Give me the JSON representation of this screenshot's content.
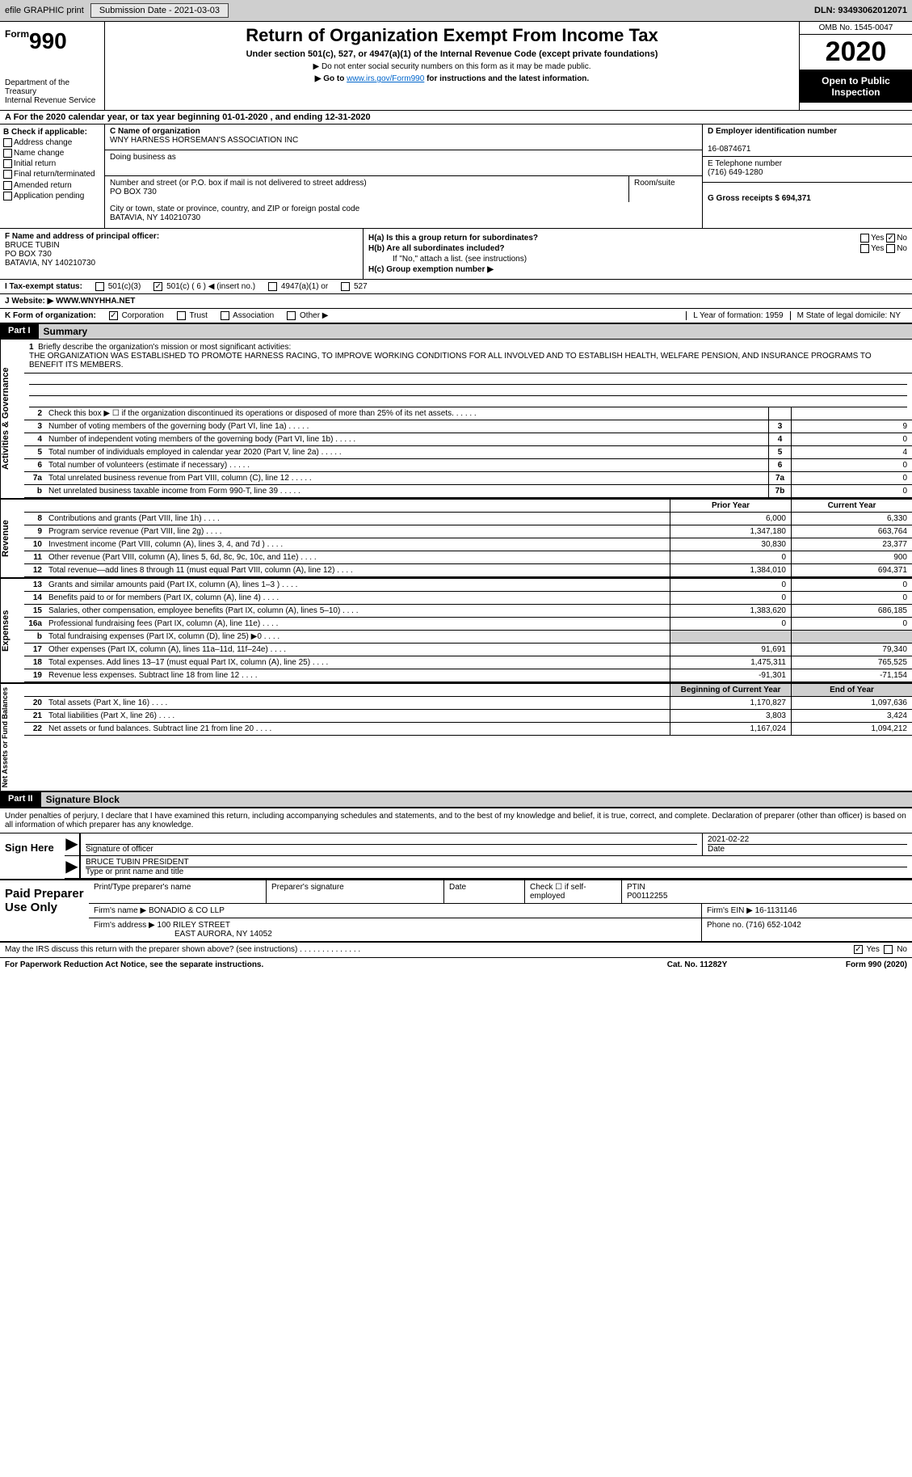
{
  "header_bar": {
    "efile": "efile GRAPHIC print",
    "submission_label": "Submission Date - 2021-03-03",
    "dln_label": "DLN: 93493062012071"
  },
  "form_head": {
    "form_label": "Form",
    "form_num": "990",
    "dept": "Department of the Treasury",
    "irs": "Internal Revenue Service",
    "title": "Return of Organization Exempt From Income Tax",
    "subtitle": "Under section 501(c), 527, or 4947(a)(1) of the Internal Revenue Code (except private foundations)",
    "note1": "▶ Do not enter social security numbers on this form as it may be made public.",
    "note2_pre": "▶ Go to ",
    "note2_link": "www.irs.gov/Form990",
    "note2_post": " for instructions and the latest information.",
    "omb": "OMB No. 1545-0047",
    "year": "2020",
    "inspect": "Open to Public Inspection"
  },
  "taxyear": "A For the 2020 calendar year, or tax year beginning 01-01-2020    , and ending 12-31-2020",
  "section_b": {
    "b_label": "B Check if applicable:",
    "checks": [
      "Address change",
      "Name change",
      "Initial return",
      "Final return/terminated",
      "Amended return",
      "Application pending"
    ],
    "c_label": "C Name of organization",
    "c_name": "WNY HARNESS HORSEMAN'S ASSOCIATION INC",
    "dba": "Doing business as",
    "addr_label": "Number and street (or P.O. box if mail is not delivered to street address)",
    "room_label": "Room/suite",
    "addr": "PO BOX 730",
    "city_label": "City or town, state or province, country, and ZIP or foreign postal code",
    "city": "BATAVIA, NY  140210730",
    "d_label": "D Employer identification number",
    "d_ein": "16-0874671",
    "e_label": "E Telephone number",
    "e_phone": "(716) 649-1280",
    "g_label": "G Gross receipts $ 694,371"
  },
  "section_f": {
    "f_label": "F Name and address of principal officer:",
    "f_name": "BRUCE TUBIN",
    "f_addr1": "PO BOX 730",
    "f_addr2": "BATAVIA, NY  140210730",
    "ha": "H(a)  Is this a group return for subordinates?",
    "ha_yes": "Yes",
    "ha_no": "No",
    "hb": "H(b)  Are all subordinates included?",
    "hb_yes": "Yes",
    "hb_no": "No",
    "hb_note": "If \"No,\" attach a list. (see instructions)",
    "hc": "H(c)  Group exemption number ▶"
  },
  "status": {
    "i": "I  Tax-exempt status:",
    "c3": "501(c)(3)",
    "c": "501(c) ( 6 ) ◀ (insert no.)",
    "a1": "4947(a)(1) or",
    "s527": "527"
  },
  "website": {
    "j": "J  Website: ▶  WWW.WNYHHA.NET"
  },
  "k": {
    "label": "K Form of organization:",
    "corp": "Corporation",
    "trust": "Trust",
    "assoc": "Association",
    "other": "Other ▶",
    "l": "L Year of formation: 1959",
    "m": "M State of legal domicile: NY"
  },
  "part1": {
    "head": "Part I",
    "title": "Summary"
  },
  "brief": {
    "num": "1",
    "label": "Briefly describe the organization's mission or most significant activities:",
    "text": "THE ORGANIZATION WAS ESTABLISHED TO PROMOTE HARNESS RACING, TO IMPROVE WORKING CONDITIONS FOR ALL INVOLVED AND TO ESTABLISH HEALTH, WELFARE PENSION, AND INSURANCE PROGRAMS TO BENEFIT ITS MEMBERS."
  },
  "vtabs": {
    "gov": "Activities & Governance",
    "rev": "Revenue",
    "exp": "Expenses",
    "net": "Net Assets or Fund Balances"
  },
  "gov_lines": [
    {
      "n": "2",
      "t": "Check this box ▶ ☐  if the organization discontinued its operations or disposed of more than 25% of its net assets.",
      "box": "",
      "v": ""
    },
    {
      "n": "3",
      "t": "Number of voting members of the governing body (Part VI, line 1a)",
      "box": "3",
      "v": "9"
    },
    {
      "n": "4",
      "t": "Number of independent voting members of the governing body (Part VI, line 1b)",
      "box": "4",
      "v": "0"
    },
    {
      "n": "5",
      "t": "Total number of individuals employed in calendar year 2020 (Part V, line 2a)",
      "box": "5",
      "v": "4"
    },
    {
      "n": "6",
      "t": "Total number of volunteers (estimate if necessary)",
      "box": "6",
      "v": "0"
    },
    {
      "n": "7a",
      "t": "Total unrelated business revenue from Part VIII, column (C), line 12",
      "box": "7a",
      "v": "0"
    },
    {
      "n": " b",
      "t": "Net unrelated business taxable income from Form 990-T, line 39",
      "box": "7b",
      "v": "0"
    }
  ],
  "col_heads": {
    "prior": "Prior Year",
    "curr": "Current Year",
    "boy": "Beginning of Current Year",
    "eoy": "End of Year"
  },
  "rev_lines": [
    {
      "n": "8",
      "t": "Contributions and grants (Part VIII, line 1h)",
      "p": "6,000",
      "c": "6,330"
    },
    {
      "n": "9",
      "t": "Program service revenue (Part VIII, line 2g)",
      "p": "1,347,180",
      "c": "663,764"
    },
    {
      "n": "10",
      "t": "Investment income (Part VIII, column (A), lines 3, 4, and 7d )",
      "p": "30,830",
      "c": "23,377"
    },
    {
      "n": "11",
      "t": "Other revenue (Part VIII, column (A), lines 5, 6d, 8c, 9c, 10c, and 11e)",
      "p": "0",
      "c": "900"
    },
    {
      "n": "12",
      "t": "Total revenue—add lines 8 through 11 (must equal Part VIII, column (A), line 12)",
      "p": "1,384,010",
      "c": "694,371"
    }
  ],
  "exp_lines": [
    {
      "n": "13",
      "t": "Grants and similar amounts paid (Part IX, column (A), lines 1–3 )",
      "p": "0",
      "c": "0"
    },
    {
      "n": "14",
      "t": "Benefits paid to or for members (Part IX, column (A), line 4)",
      "p": "0",
      "c": "0"
    },
    {
      "n": "15",
      "t": "Salaries, other compensation, employee benefits (Part IX, column (A), lines 5–10)",
      "p": "1,383,620",
      "c": "686,185"
    },
    {
      "n": "16a",
      "t": "Professional fundraising fees (Part IX, column (A), line 11e)",
      "p": "0",
      "c": "0"
    },
    {
      "n": "b",
      "t": "Total fundraising expenses (Part IX, column (D), line 25) ▶0",
      "p": "",
      "c": "",
      "shade": true
    },
    {
      "n": "17",
      "t": "Other expenses (Part IX, column (A), lines 11a–11d, 11f–24e)",
      "p": "91,691",
      "c": "79,340"
    },
    {
      "n": "18",
      "t": "Total expenses. Add lines 13–17 (must equal Part IX, column (A), line 25)",
      "p": "1,475,311",
      "c": "765,525"
    },
    {
      "n": "19",
      "t": "Revenue less expenses. Subtract line 18 from line 12",
      "p": "-91,301",
      "c": "-71,154"
    }
  ],
  "net_lines": [
    {
      "n": "20",
      "t": "Total assets (Part X, line 16)",
      "p": "1,170,827",
      "c": "1,097,636"
    },
    {
      "n": "21",
      "t": "Total liabilities (Part X, line 26)",
      "p": "3,803",
      "c": "3,424"
    },
    {
      "n": "22",
      "t": "Net assets or fund balances. Subtract line 21 from line 20",
      "p": "1,167,024",
      "c": "1,094,212"
    }
  ],
  "part2": {
    "head": "Part II",
    "title": "Signature Block"
  },
  "sig": {
    "decl": "Under penalties of perjury, I declare that I have examined this return, including accompanying schedules and statements, and to the best of my knowledge and belief, it is true, correct, and complete. Declaration of preparer (other than officer) is based on all information of which preparer has any knowledge.",
    "sign_here": "Sign Here",
    "sig_officer": "Signature of officer",
    "date_val": "2021-02-22",
    "date_lbl": "Date",
    "name": "BRUCE TUBIN  PRESIDENT",
    "name_lbl": "Type or print name and title"
  },
  "prep": {
    "title": "Paid Preparer Use Only",
    "h1": "Print/Type preparer's name",
    "h2": "Preparer's signature",
    "h3": "Date",
    "h4a": "Check ☐ if self-employed",
    "h4b": "PTIN",
    "ptin": "P00112255",
    "firm_lbl": "Firm's name    ▶",
    "firm": "BONADIO & CO LLP",
    "ein_lbl": "Firm's EIN ▶",
    "ein": "16-1131146",
    "addr_lbl": "Firm's address ▶",
    "addr1": "100 RILEY STREET",
    "addr2": "EAST AURORA, NY  14052",
    "phone_lbl": "Phone no.",
    "phone": "(716) 652-1042"
  },
  "foot": {
    "discuss": "May the IRS discuss this return with the preparer shown above? (see instructions)",
    "yes": "Yes",
    "no": "No",
    "pra": "For Paperwork Reduction Act Notice, see the separate instructions.",
    "cat": "Cat. No. 11282Y",
    "form": "Form 990 (2020)"
  }
}
